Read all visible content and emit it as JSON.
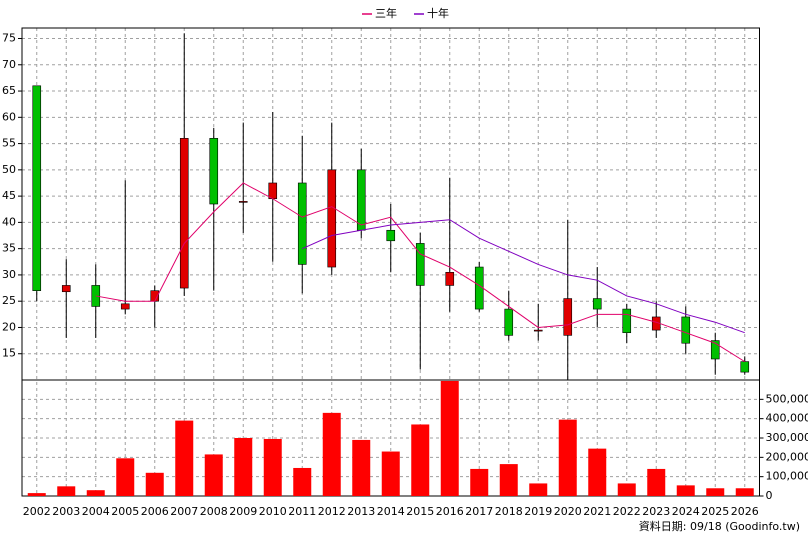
{
  "chart_data": {
    "type": "candlestick",
    "categories": [
      "2002",
      "2003",
      "2004",
      "2005",
      "2006",
      "2007",
      "2008",
      "2009",
      "2010",
      "2011",
      "2012",
      "2013",
      "2014",
      "2015",
      "2016",
      "2017",
      "2018",
      "2019",
      "2020",
      "2021",
      "2022",
      "2023",
      "2024",
      "2025",
      "2026"
    ],
    "open": [
      66,
      26.8,
      28,
      23.5,
      25,
      27.5,
      56,
      44,
      44.5,
      47.5,
      31.5,
      50,
      38.5,
      36,
      28,
      31.5,
      23.5,
      19.5,
      18.5,
      25.5,
      23.5,
      19.5,
      22,
      17.5,
      13.5
    ],
    "high": [
      66,
      33,
      32,
      48,
      28,
      76,
      58,
      59,
      61,
      56.5,
      59,
      54,
      43.5,
      38,
      48.5,
      32.5,
      27,
      24.5,
      40.5,
      31.5,
      24.5,
      25,
      24,
      19,
      14.5
    ],
    "low": [
      25,
      18,
      18,
      22.5,
      20,
      26,
      27,
      38,
      32.5,
      26.5,
      30,
      37,
      30.5,
      12,
      23,
      23,
      17.5,
      17.5,
      10,
      20,
      17,
      18,
      15,
      11,
      11
    ],
    "close": [
      27,
      28,
      24,
      24.5,
      27,
      56,
      43.5,
      44,
      47.5,
      32,
      50,
      38.5,
      36.5,
      28,
      30.5,
      23.5,
      18.5,
      19.5,
      25.5,
      23.5,
      19,
      22,
      17,
      14,
      11.5
    ],
    "up_color": "#e00000",
    "down_color": "#00c000",
    "ylim": [
      10,
      77
    ],
    "yticks": [
      15,
      20,
      25,
      30,
      35,
      40,
      45,
      50,
      55,
      60,
      65,
      70,
      75
    ],
    "grid": true,
    "legend": "top",
    "series": [
      {
        "name": "三年",
        "color": "#e0006a",
        "values": [
          null,
          null,
          26,
          25,
          25,
          36,
          42,
          47.5,
          44.5,
          41,
          43,
          39.5,
          41,
          34,
          31.5,
          28,
          24,
          20,
          20.5,
          22.5,
          22.5,
          21,
          19,
          17,
          13.5
        ]
      },
      {
        "name": "十年",
        "color": "#8000c0",
        "values": [
          null,
          null,
          null,
          null,
          null,
          null,
          null,
          null,
          null,
          35,
          37.5,
          38.5,
          39.5,
          40,
          40.5,
          37,
          34.5,
          32,
          30,
          29,
          26,
          24.5,
          22.5,
          21,
          19
        ]
      }
    ],
    "volume": {
      "type": "bar",
      "color": "#ff0000",
      "values": [
        15000,
        50000,
        30000,
        195000,
        120000,
        390000,
        215000,
        300000,
        295000,
        145000,
        430000,
        290000,
        230000,
        370000,
        595000,
        140000,
        165000,
        65000,
        395000,
        245000,
        65000,
        140000,
        55000,
        40000,
        40000
      ],
      "ylim": [
        0,
        600000
      ],
      "yticks": [
        0,
        {
          "value": 100000,
          "label": "100,000"
        },
        {
          "value": 200000,
          "label": "200,000"
        },
        {
          "value": 300000,
          "label": "300,000"
        },
        {
          "value": 400000,
          "label": "400,000"
        },
        {
          "value": 500000,
          "label": "500,000"
        }
      ]
    },
    "note": "資料日期: 09/18  (Goodinfo.tw)"
  }
}
